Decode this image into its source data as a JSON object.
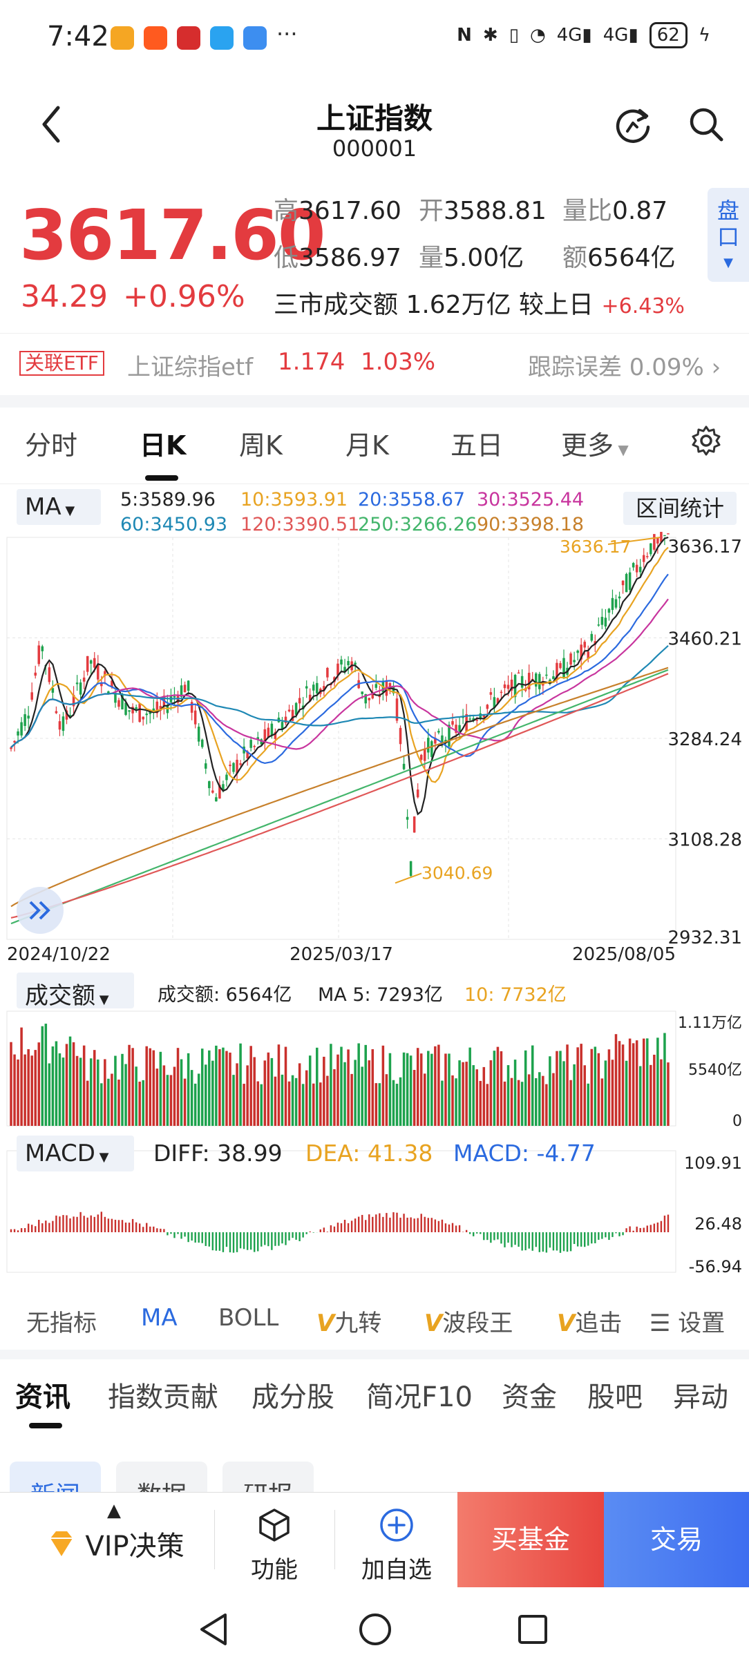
{
  "status": {
    "time": "7:42",
    "dots": "···",
    "net1": "4G",
    "net2": "4G",
    "battery": "62"
  },
  "header": {
    "title": "上证指数",
    "code": "000001"
  },
  "quote": {
    "price": "3617.60",
    "change": "34.29",
    "change_pct": "+0.96%",
    "high_label": "高",
    "high": "3617.60",
    "open_label": "开",
    "open": "3588.81",
    "vr_label": "量比",
    "vr": "0.87",
    "low_label": "低",
    "low": "3586.97",
    "vol_label": "量",
    "vol": "5.00亿",
    "amt_label": "额",
    "amt": "6564亿",
    "market_turnover": "三市成交额 1.62万亿 较上日",
    "market_turnover_pct": "+6.43%",
    "panko": "盘口"
  },
  "etf": {
    "tag": "关联ETF",
    "name": "上证综指etf",
    "price": "1.174",
    "pct": "1.03%",
    "tracking": "跟踪误差  0.09%"
  },
  "ktabs": [
    "分时",
    "日K",
    "周K",
    "月K",
    "五日",
    "更多"
  ],
  "ma": {
    "selector": "MA",
    "ma5": "5:3589.96",
    "ma10": "10:3593.91",
    "ma20": "20:3558.67",
    "ma30": "30:3525.44",
    "ma60": "60:3450.93",
    "ma120": "120:3390.51",
    "ma250": "250:3266.26",
    "ma90": "90:3398.18",
    "range_button": "区间统计",
    "colors": {
      "ma5": "#222222",
      "ma10": "#e8a321",
      "ma20": "#2b6adf",
      "ma30": "#c8359e",
      "ma60": "#1e88b4",
      "ma120": "#e05757",
      "ma250": "#43b56b",
      "ma90": "#c7802b"
    }
  },
  "chart_data": {
    "type": "candlestick",
    "y_axis_ticks": [
      "3636.17",
      "3460.21",
      "3284.24",
      "3108.28",
      "2932.31"
    ],
    "x_axis_ticks": [
      "2024/10/22",
      "2025/03/17",
      "2025/08/05"
    ],
    "annotations": {
      "high": "3636.17",
      "low": "3040.69"
    },
    "ylim": [
      2932.31,
      3636.17
    ]
  },
  "volume": {
    "selector": "成交额",
    "amount": "成交额: 6564亿",
    "ma5": "MA 5: 7293亿",
    "ma10": "10: 7732亿",
    "ticks": [
      "1.11万亿",
      "5540亿",
      "0"
    ]
  },
  "macd": {
    "selector": "MACD",
    "diff": "DIFF: 38.99",
    "dea": "DEA: 41.38",
    "macd": "MACD: -4.77",
    "ticks": [
      "109.91",
      "26.48",
      "-56.94"
    ]
  },
  "indicators": [
    "无指标",
    "MA",
    "BOLL",
    "九转",
    "波段王",
    "追击",
    "设置"
  ],
  "info_tabs": [
    "资讯",
    "指数贡献",
    "成分股",
    "简况F10",
    "资金",
    "股吧",
    "异动"
  ],
  "chips": [
    "新闻",
    "数据",
    "研报"
  ],
  "bottom": {
    "vip": "VIP决策",
    "func": "功能",
    "add": "加自选",
    "buy": "买基金",
    "trade": "交易"
  }
}
